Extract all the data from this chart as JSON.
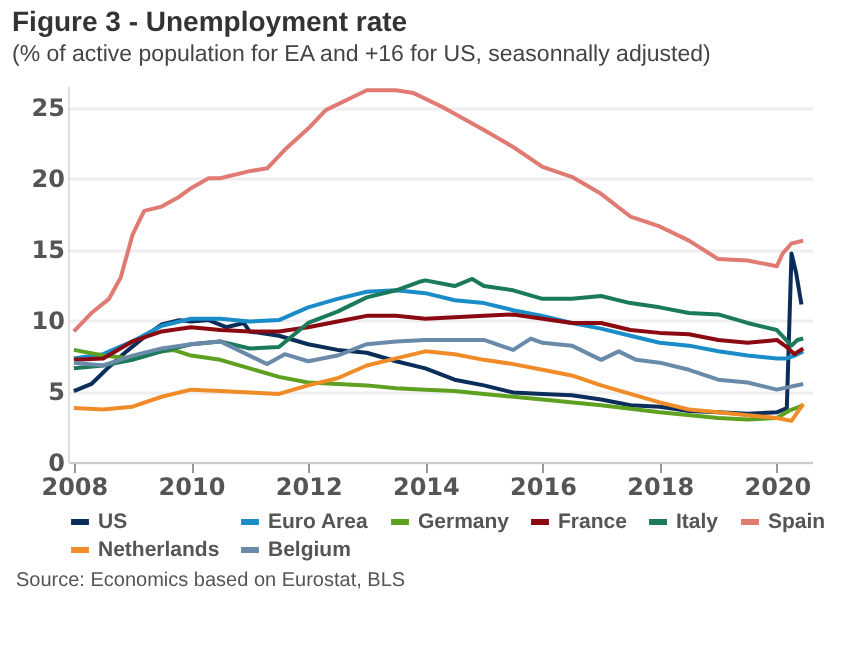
{
  "chart_data": {
    "type": "line",
    "title": "Figure 3 - Unemployment rate",
    "subtitle": "(% of active population for EA and +16 for US, seasonnally adjusted)",
    "annotations": [
      "Source: Economics based on Eurostat, BLS"
    ],
    "xlim": [
      2007.9,
      2020.6
    ],
    "xticks": [
      2008,
      2010,
      2012,
      2014,
      2016,
      2018,
      2020
    ],
    "ylim": [
      0,
      26.5
    ],
    "yticks": [
      0,
      5,
      10,
      15,
      20,
      25
    ],
    "grid": "y",
    "legend": "bottom",
    "line_style": "solid",
    "series": [
      {
        "name": "US",
        "color": "#0a2d5a",
        "x": [
          2008,
          2008.3,
          2008.6,
          2008.9,
          2009.2,
          2009.5,
          2009.8,
          2010,
          2010.3,
          2010.6,
          2010.9,
          2011,
          2011.5,
          2012,
          2012.5,
          2013,
          2013.5,
          2014,
          2014.5,
          2015,
          2015.5,
          2016,
          2016.5,
          2017,
          2017.5,
          2018,
          2018.5,
          2019,
          2019.5,
          2020,
          2020.17,
          2020.25,
          2020.33,
          2020.42
        ],
        "values": [
          5.0,
          5.5,
          6.7,
          7.8,
          8.8,
          9.7,
          10.0,
          9.9,
          10.0,
          9.5,
          9.8,
          9.2,
          8.9,
          8.3,
          7.9,
          7.7,
          7.1,
          6.6,
          5.8,
          5.4,
          4.9,
          4.8,
          4.7,
          4.4,
          4.0,
          3.9,
          3.6,
          3.5,
          3.4,
          3.5,
          3.8,
          14.7,
          13.3,
          11.1
        ]
      },
      {
        "name": "Euro Area",
        "color": "#1a8cc8",
        "x": [
          2008,
          2008.5,
          2009,
          2009.5,
          2010,
          2010.5,
          2011,
          2011.5,
          2012,
          2012.5,
          2013,
          2013.5,
          2014,
          2014.5,
          2015,
          2015.5,
          2016,
          2016.5,
          2017,
          2017.5,
          2018,
          2018.5,
          2019,
          2019.5,
          2020,
          2020.17,
          2020.3,
          2020.45
        ],
        "values": [
          7.3,
          7.6,
          8.5,
          9.6,
          10.1,
          10.1,
          9.9,
          10.0,
          10.9,
          11.5,
          12.0,
          12.1,
          11.9,
          11.4,
          11.2,
          10.7,
          10.3,
          9.8,
          9.4,
          8.9,
          8.4,
          8.2,
          7.8,
          7.5,
          7.3,
          7.3,
          7.5,
          7.8
        ]
      },
      {
        "name": "Germany",
        "color": "#5ea020",
        "x": [
          2008,
          2008.5,
          2009,
          2009.3,
          2009.7,
          2010,
          2010.5,
          2011,
          2011.5,
          2012,
          2012.5,
          2013,
          2013.5,
          2014,
          2014.5,
          2015,
          2016,
          2017,
          2018,
          2019,
          2019.5,
          2020,
          2020.2,
          2020.45
        ],
        "values": [
          7.9,
          7.5,
          7.3,
          7.7,
          7.9,
          7.5,
          7.2,
          6.6,
          6.0,
          5.6,
          5.5,
          5.4,
          5.2,
          5.1,
          5.0,
          4.8,
          4.4,
          4.0,
          3.5,
          3.1,
          3.0,
          3.1,
          3.6,
          4.0
        ]
      },
      {
        "name": "France",
        "color": "#8b0a12",
        "x": [
          2008,
          2008.5,
          2009,
          2009.5,
          2010,
          2010.5,
          2011,
          2011.5,
          2012,
          2012.5,
          2013,
          2013.5,
          2014,
          2015,
          2015.5,
          2016,
          2016.5,
          2017,
          2017.5,
          2018,
          2018.5,
          2019,
          2019.5,
          2020,
          2020.17,
          2020.3,
          2020.45
        ],
        "values": [
          7.2,
          7.3,
          8.5,
          9.2,
          9.5,
          9.3,
          9.2,
          9.2,
          9.5,
          9.9,
          10.3,
          10.3,
          10.1,
          10.3,
          10.4,
          10.1,
          9.8,
          9.8,
          9.3,
          9.1,
          9.0,
          8.6,
          8.4,
          8.6,
          8.1,
          7.6,
          8.0
        ]
      },
      {
        "name": "Italy",
        "color": "#1a7a5a",
        "x": [
          2008,
          2008.5,
          2009,
          2009.5,
          2010,
          2010.5,
          2011,
          2011.5,
          2012,
          2012.5,
          2013,
          2013.5,
          2013.9,
          2014,
          2014.5,
          2014.8,
          2015,
          2015.5,
          2016,
          2016.5,
          2017,
          2017.5,
          2018,
          2018.5,
          2019,
          2019.5,
          2020,
          2020.25,
          2020.35,
          2020.45
        ],
        "values": [
          6.6,
          6.8,
          7.2,
          7.8,
          8.3,
          8.5,
          8.0,
          8.1,
          9.8,
          10.6,
          11.6,
          12.1,
          12.7,
          12.8,
          12.4,
          12.9,
          12.4,
          12.1,
          11.5,
          11.5,
          11.7,
          11.2,
          10.9,
          10.5,
          10.4,
          9.8,
          9.3,
          8.2,
          8.6,
          8.7
        ]
      },
      {
        "name": "Spain",
        "color": "#e07a72",
        "x": [
          2008,
          2008.3,
          2008.6,
          2008.8,
          2009,
          2009.2,
          2009.5,
          2009.8,
          2010,
          2010.3,
          2010.5,
          2011,
          2011.3,
          2011.6,
          2012,
          2012.3,
          2012.7,
          2013,
          2013.5,
          2013.8,
          2014.3,
          2015,
          2015.5,
          2016,
          2016.5,
          2017,
          2017.5,
          2018,
          2018.5,
          2019,
          2019.5,
          2020,
          2020.1,
          2020.25,
          2020.45
        ],
        "values": [
          9.2,
          10.5,
          11.5,
          13.0,
          16.0,
          17.7,
          18.0,
          18.7,
          19.3,
          20.0,
          20.0,
          20.5,
          20.7,
          22.0,
          23.5,
          24.8,
          25.6,
          26.2,
          26.2,
          26.0,
          25.0,
          23.4,
          22.2,
          20.8,
          20.1,
          18.9,
          17.3,
          16.6,
          15.6,
          14.3,
          14.2,
          13.8,
          14.7,
          15.4,
          15.6
        ]
      },
      {
        "name": "Netherlands",
        "color": "#f08c28",
        "x": [
          2008,
          2008.5,
          2009,
          2009.5,
          2010,
          2010.5,
          2011,
          2011.5,
          2012,
          2012.5,
          2013,
          2013.5,
          2014,
          2014.5,
          2015,
          2015.5,
          2016,
          2016.5,
          2017,
          2017.5,
          2018,
          2018.5,
          2019,
          2019.5,
          2020,
          2020.25,
          2020.45
        ],
        "values": [
          3.8,
          3.7,
          3.9,
          4.6,
          5.1,
          5.0,
          4.9,
          4.8,
          5.4,
          5.9,
          6.8,
          7.3,
          7.8,
          7.6,
          7.2,
          6.9,
          6.5,
          6.1,
          5.4,
          4.8,
          4.2,
          3.7,
          3.5,
          3.3,
          3.1,
          2.9,
          4.1
        ]
      },
      {
        "name": "Belgium",
        "color": "#6a8aaa",
        "x": [
          2008,
          2008.5,
          2009,
          2009.5,
          2010,
          2010.5,
          2011,
          2011.3,
          2011.6,
          2012,
          2012.5,
          2013,
          2013.5,
          2014,
          2014.5,
          2015,
          2015.5,
          2015.8,
          2016,
          2016.5,
          2017,
          2017.3,
          2017.6,
          2018,
          2018.5,
          2019,
          2019.5,
          2020,
          2020.45
        ],
        "values": [
          7.0,
          6.8,
          7.5,
          8.0,
          8.3,
          8.5,
          7.5,
          6.9,
          7.6,
          7.1,
          7.5,
          8.3,
          8.5,
          8.6,
          8.6,
          8.6,
          7.9,
          8.7,
          8.4,
          8.2,
          7.2,
          7.8,
          7.2,
          7.0,
          6.5,
          5.8,
          5.6,
          5.1,
          5.5
        ]
      }
    ]
  }
}
